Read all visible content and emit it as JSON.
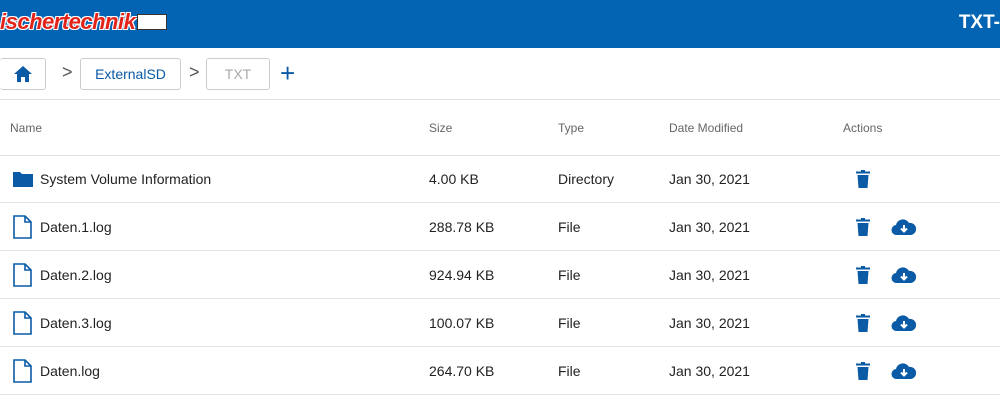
{
  "header": {
    "logo": "ischertechnik",
    "device": "TXT-"
  },
  "breadcrumb": [
    "ExternalSD",
    "TXT"
  ],
  "table": {
    "columns": [
      "Name",
      "Size",
      "Type",
      "Date Modified",
      "Actions"
    ],
    "rows": [
      [
        "System Volume Information",
        "4.00 KB",
        "Directory",
        "Jan 30, 2021"
      ],
      [
        "Daten.1.log",
        "288.78 KB",
        "File",
        "Jan 30, 2021"
      ],
      [
        "Daten.2.log",
        "924.94 KB",
        "File",
        "Jan 30, 2021"
      ],
      [
        "Daten.3.log",
        "100.07 KB",
        "File",
        "Jan 30, 2021"
      ],
      [
        "Daten.log",
        "264.70 KB",
        "File",
        "Jan 30, 2021"
      ]
    ]
  }
}
